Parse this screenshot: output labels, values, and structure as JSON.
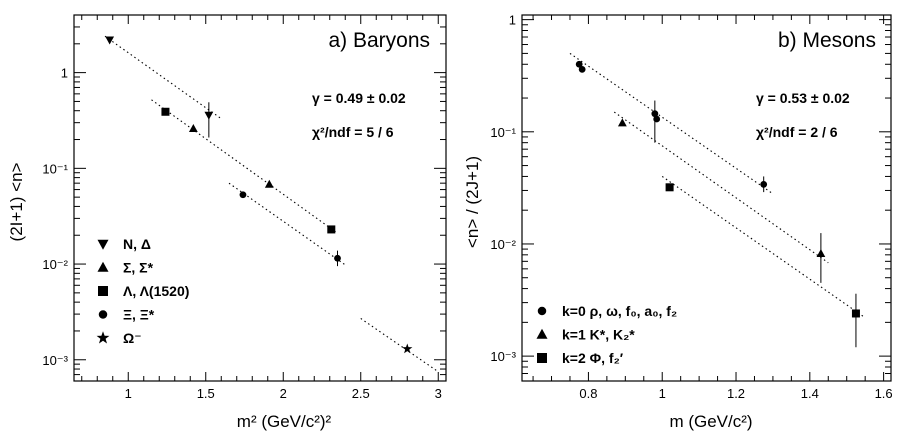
{
  "chart_data": [
    {
      "type": "scatter",
      "title": "a) Baryons",
      "xlabel": "m² (GeV/c²)²",
      "ylabel": "(2I+1) <n>",
      "xlim": [
        0.65,
        3.05
      ],
      "ylim": [
        0.0006,
        4
      ],
      "yscale": "log",
      "x_ticks": [
        1,
        1.5,
        2,
        2.5,
        3
      ],
      "x_tick_labels": [
        "1",
        "1.5",
        "2",
        "2.5",
        "3"
      ],
      "y_ticks": [
        0.001,
        0.01,
        0.1,
        1
      ],
      "y_tick_labels": [
        "10⁻³",
        "10⁻²",
        "10⁻¹",
        "1"
      ],
      "annotations": [
        "γ = 0.49 ± 0.02",
        "χ²/ndf = 5 / 6"
      ],
      "legend_position": "bottom-left",
      "series": [
        {
          "name": "N, Δ",
          "marker": "triangle-down",
          "points": [
            {
              "x": 0.88,
              "y": 2.2
            },
            {
              "x": 1.52,
              "y": 0.36,
              "err_lo": 0.21,
              "err_hi": 0.49
            }
          ]
        },
        {
          "name": "Σ, Σ*",
          "marker": "triangle-up",
          "points": [
            {
              "x": 1.42,
              "y": 0.26
            },
            {
              "x": 1.91,
              "y": 0.068
            }
          ]
        },
        {
          "name": "Λ, Λ(1520)",
          "marker": "square",
          "points": [
            {
              "x": 1.24,
              "y": 0.39
            },
            {
              "x": 2.31,
              "y": 0.023
            }
          ]
        },
        {
          "name": "Ξ, Ξ*",
          "marker": "circle",
          "points": [
            {
              "x": 1.74,
              "y": 0.053
            },
            {
              "x": 2.35,
              "y": 0.0115,
              "err_lo": 0.0095,
              "err_hi": 0.0138
            }
          ]
        },
        {
          "name": "Ω⁻",
          "marker": "star",
          "points": [
            {
              "x": 2.8,
              "y": 0.0013
            }
          ]
        }
      ],
      "fit_lines": [
        {
          "x": [
            0.85,
            1.6
          ],
          "y": [
            2.4,
            0.33
          ]
        },
        {
          "x": [
            1.15,
            2.35
          ],
          "y": [
            0.52,
            0.021
          ]
        },
        {
          "x": [
            1.65,
            2.4
          ],
          "y": [
            0.07,
            0.0098
          ]
        },
        {
          "x": [
            2.5,
            3.0
          ],
          "y": [
            0.0027,
            0.00075
          ]
        }
      ]
    },
    {
      "type": "scatter",
      "title": "b) Mesons",
      "xlabel": "m (GeV/c²)",
      "ylabel": "<n> / (2J+1)",
      "xlim": [
        0.62,
        1.62
      ],
      "ylim": [
        0.0006,
        1.1
      ],
      "yscale": "log",
      "x_ticks": [
        0.8,
        1.0,
        1.2,
        1.4,
        1.6
      ],
      "x_tick_labels": [
        "0.8",
        "1",
        "1.2",
        "1.4",
        "1.6"
      ],
      "y_ticks": [
        0.001,
        0.01,
        0.1,
        1
      ],
      "y_tick_labels": [
        "10⁻³",
        "10⁻²",
        "10⁻¹",
        "1"
      ],
      "annotations": [
        "γ = 0.53 ± 0.02",
        "χ²/ndf = 2 / 6"
      ],
      "legend_position": "bottom-left",
      "series": [
        {
          "name": "k=0   ρ, ω, f₀, a₀, f₂",
          "marker": "circle",
          "points": [
            {
              "x": 0.775,
              "y": 0.4
            },
            {
              "x": 0.783,
              "y": 0.36
            },
            {
              "x": 0.98,
              "y": 0.145,
              "err_lo": 0.08,
              "err_hi": 0.19
            },
            {
              "x": 0.985,
              "y": 0.13
            },
            {
              "x": 1.275,
              "y": 0.034,
              "err_lo": 0.029,
              "err_hi": 0.04
            }
          ]
        },
        {
          "name": "k=1   K*, K₂*",
          "marker": "triangle-up",
          "points": [
            {
              "x": 0.892,
              "y": 0.12
            },
            {
              "x": 1.43,
              "y": 0.0082,
              "err_lo": 0.0045,
              "err_hi": 0.0125
            }
          ]
        },
        {
          "name": "k=2   Φ, f₂′",
          "marker": "square",
          "points": [
            {
              "x": 1.02,
              "y": 0.032
            },
            {
              "x": 1.525,
              "y": 0.0024,
              "err_lo": 0.0012,
              "err_hi": 0.0036
            }
          ]
        }
      ],
      "fit_lines": [
        {
          "x": [
            0.75,
            1.3
          ],
          "y": [
            0.5,
            0.028
          ]
        },
        {
          "x": [
            0.87,
            1.45
          ],
          "y": [
            0.15,
            0.0068
          ]
        },
        {
          "x": [
            1.0,
            1.55
          ],
          "y": [
            0.04,
            0.0022
          ]
        }
      ]
    }
  ]
}
